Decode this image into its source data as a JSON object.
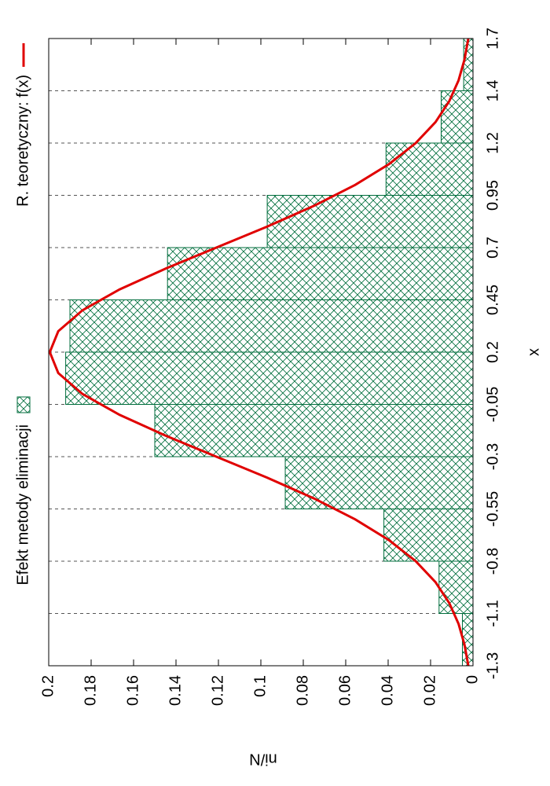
{
  "chart_data": {
    "type": "histogram",
    "xlabel": "x",
    "ylabel": "ni/N",
    "bins": [
      -1.3,
      -1.05,
      -0.8,
      -0.55,
      -0.3,
      -0.05,
      0.2,
      0.45,
      0.7,
      0.95,
      1.2,
      1.45,
      1.7
    ],
    "xlim": [
      -1.3,
      1.7
    ],
    "xticks": [
      -1.3,
      {
        "value": -1.05,
        "label": "-1.1"
      },
      -0.8,
      -0.55,
      -0.3,
      -0.05,
      0.2,
      0.45,
      0.7,
      0.95,
      1.2,
      {
        "value": 1.45,
        "label": "1.4"
      },
      1.7
    ],
    "ylim": [
      0,
      0.2
    ],
    "yticks": [
      0,
      0.02,
      0.04,
      0.06,
      0.08,
      0.1,
      0.12,
      0.14,
      0.16,
      0.18,
      0.2
    ],
    "grid": "x",
    "series": [
      {
        "name": "Efekt metody eliminacji",
        "type": "histogram",
        "color": "#006d3c",
        "values": [
          0.005,
          0.016,
          0.042,
          0.0885,
          0.15,
          0.192,
          0.19,
          0.144,
          0.097,
          0.041,
          0.015,
          0.0044
        ]
      },
      {
        "name": "R. teoretyczny: f(x)",
        "type": "line",
        "color": "#e00000",
        "x": [
          -1.3,
          -1.2,
          -1.1,
          -1,
          -0.9,
          -0.8,
          -0.7,
          -0.6,
          -0.5,
          -0.4,
          -0.3,
          -0.2,
          -0.1,
          0,
          0.1,
          0.2,
          0.3,
          0.4,
          0.5,
          0.6,
          0.7,
          0.8,
          0.9,
          1,
          1.1,
          1.2,
          1.3,
          1.4,
          1.5,
          1.6,
          1.7
        ],
        "values": [
          0.0022,
          0.004,
          0.0068,
          0.0112,
          0.0177,
          0.027,
          0.0395,
          0.0555,
          0.0749,
          0.0971,
          0.121,
          0.1448,
          0.1666,
          0.1841,
          0.1955,
          0.1995,
          0.1955,
          0.1841,
          0.1666,
          0.1448,
          0.121,
          0.0971,
          0.0749,
          0.0555,
          0.0395,
          0.027,
          0.0177,
          0.0112,
          0.0068,
          0.004,
          0.0022
        ]
      }
    ]
  }
}
